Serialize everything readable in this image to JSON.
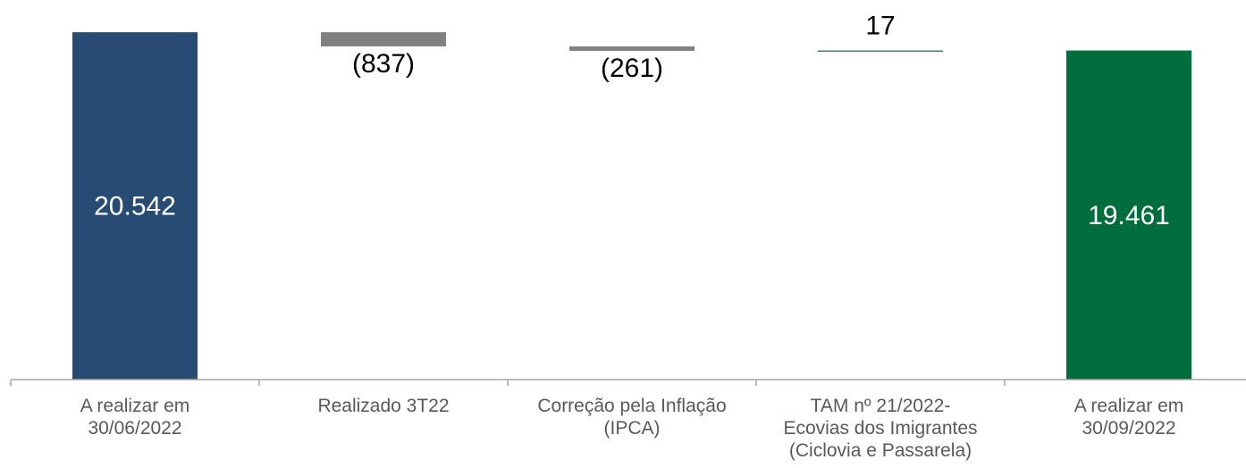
{
  "chart_data": {
    "type": "waterfall",
    "categories": [
      [
        "A realizar em",
        "30/06/2022"
      ],
      [
        "Realizado 3T22"
      ],
      [
        "Correção pela Inflação",
        "(IPCA)"
      ],
      [
        "TAM nº 21/2022-",
        "Ecovias dos Imigrantes",
        "(Ciclovia e Passarela)"
      ],
      [
        "A realizar em",
        "30/09/2022"
      ]
    ],
    "values": [
      20542,
      -837,
      -261,
      17,
      19461
    ],
    "value_labels": [
      "20.542",
      "(837)",
      "(261)",
      "17",
      "19.461"
    ],
    "kinds": [
      "total",
      "delta",
      "delta",
      "delta",
      "total"
    ],
    "colors": [
      "#284B73",
      "#808080",
      "#808080",
      "#006D3D",
      "#006D3D"
    ],
    "ylim": [
      0,
      20600
    ],
    "grid": false,
    "legend": "none",
    "title": "",
    "xlabel": "",
    "ylabel": ""
  }
}
